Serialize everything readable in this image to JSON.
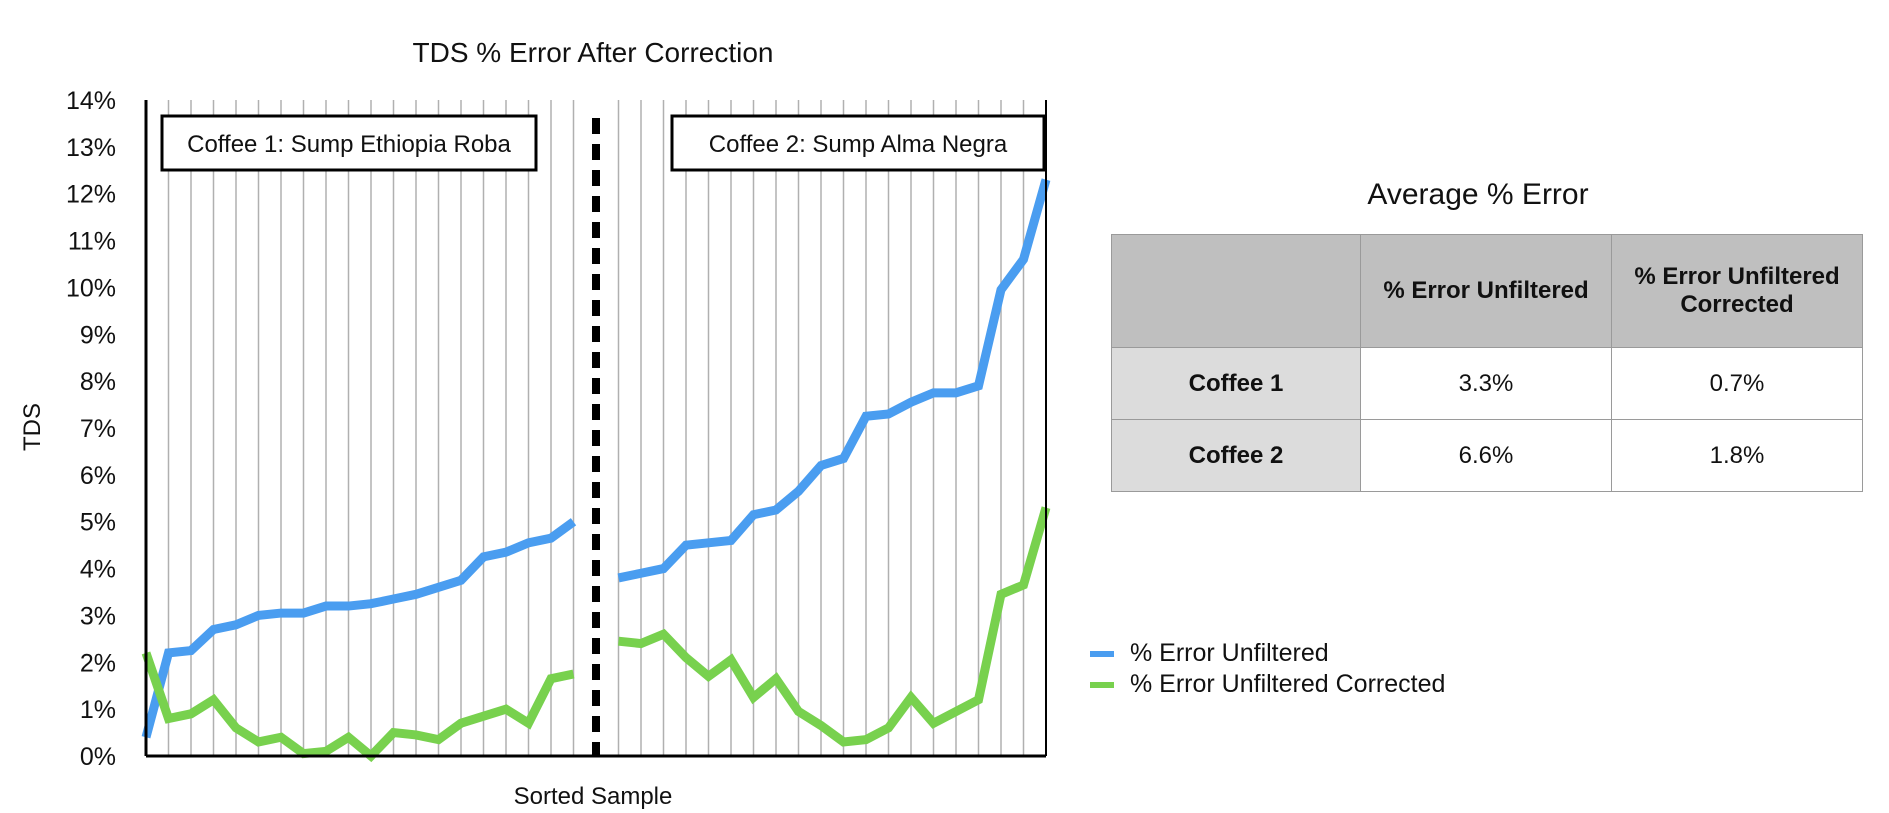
{
  "chart_data": {
    "type": "line",
    "title": "TDS % Error After Correction",
    "xlabel": "Sorted Sample",
    "ylabel": "TDS",
    "ylim": [
      0,
      14
    ],
    "y_ticks": [
      "0%",
      "1%",
      "2%",
      "3%",
      "4%",
      "5%",
      "6%",
      "7%",
      "8%",
      "9%",
      "10%",
      "11%",
      "12%",
      "13%",
      "14%"
    ],
    "grid": "vertical",
    "n_samples": 41,
    "separator_index": 20,
    "groups": [
      {
        "label": "Coffee 1: Sump Ethiopia Roba",
        "start": 0,
        "end": 19
      },
      {
        "label": "Coffee 2: Sump Alma Negra",
        "start": 21,
        "end": 40
      }
    ],
    "series": [
      {
        "name": "% Error Unfiltered",
        "color": "#4a9df0",
        "values": [
          0.4,
          2.2,
          2.25,
          2.7,
          2.8,
          3.0,
          3.05,
          3.05,
          3.2,
          3.2,
          3.25,
          3.35,
          3.45,
          3.6,
          3.75,
          4.25,
          4.35,
          4.55,
          4.65,
          5.0,
          null,
          3.8,
          3.9,
          4.0,
          4.5,
          4.55,
          4.6,
          5.15,
          5.25,
          5.65,
          6.2,
          6.35,
          7.25,
          7.3,
          7.55,
          7.75,
          7.75,
          7.9,
          9.95,
          10.6,
          12.3
        ]
      },
      {
        "name": "% Error Unfiltered Corrected",
        "color": "#78d14e",
        "values": [
          2.2,
          0.8,
          0.9,
          1.2,
          0.6,
          0.3,
          0.4,
          0.05,
          0.1,
          0.4,
          0.0,
          0.5,
          0.45,
          0.35,
          0.7,
          0.85,
          1.0,
          0.7,
          1.65,
          1.75,
          null,
          2.45,
          2.4,
          2.6,
          2.1,
          1.7,
          2.05,
          1.25,
          1.65,
          0.95,
          0.65,
          0.3,
          0.35,
          0.6,
          1.25,
          0.7,
          0.95,
          1.2,
          3.45,
          3.65,
          5.3
        ]
      }
    ],
    "legend_position": "bottom-right"
  },
  "table": {
    "title": "Average % Error",
    "columns": [
      "",
      "% Error Unfiltered",
      "% Error Unfiltered Corrected"
    ],
    "rows": [
      [
        "Coffee 1",
        "3.3%",
        "0.7%"
      ],
      [
        "Coffee 2",
        "6.6%",
        "1.8%"
      ]
    ]
  }
}
